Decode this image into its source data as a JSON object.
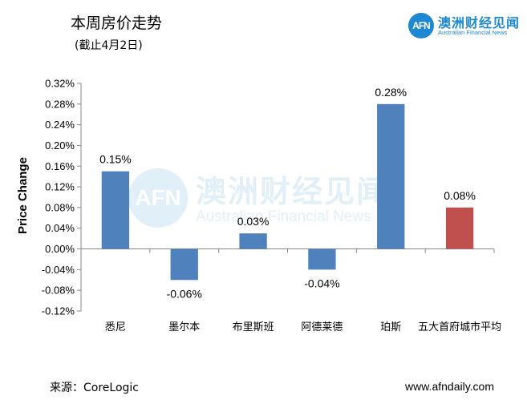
{
  "header": {
    "title": "本周房价走势",
    "subtitle": "(截止4月2日)"
  },
  "logo": {
    "mark": "AFN",
    "name_cn": "澳洲财经见闻",
    "name_en": "Australian Financial News",
    "color": "#1e88d3"
  },
  "watermark": {
    "mark": "AFN",
    "name_cn": "澳洲财经见闻",
    "name_en": "Australian Financial News"
  },
  "footer": {
    "source": "来源：CoreLogic",
    "url": "www.afndaily.com"
  },
  "chart_data": {
    "type": "bar",
    "categories": [
      "悉尼",
      "墨尔本",
      "布里斯班",
      "阿德莱德",
      "珀斯",
      "五大首府城市平均"
    ],
    "values": [
      0.15,
      -0.06,
      0.03,
      -0.04,
      0.28,
      0.08
    ],
    "data_labels": [
      "0.15%",
      "-0.06%",
      "0.03%",
      "-0.04%",
      "0.28%",
      "0.08%"
    ],
    "bar_colors": [
      "#4f81bd",
      "#4f81bd",
      "#4f81bd",
      "#4f81bd",
      "#4f81bd",
      "#c0504d"
    ],
    "ylabel": "Price Change",
    "ylim": [
      -0.12,
      0.32
    ],
    "yticks": [
      -0.12,
      -0.08,
      -0.04,
      0.0,
      0.04,
      0.08,
      0.12,
      0.16,
      0.2,
      0.24,
      0.28,
      0.32
    ],
    "ytick_labels": [
      "-0.12%",
      "-0.08%",
      "-0.04%",
      "0.00%",
      "0.04%",
      "0.08%",
      "0.12%",
      "0.16%",
      "0.20%",
      "0.24%",
      "0.28%",
      "0.32%"
    ],
    "grid": false,
    "legend": "none"
  }
}
